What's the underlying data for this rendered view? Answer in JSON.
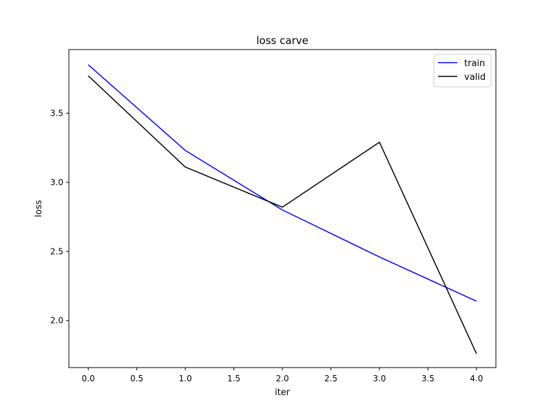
{
  "chart_data": {
    "type": "line",
    "title": "loss carve",
    "xlabel": "iter",
    "ylabel": "loss",
    "x": [
      0,
      1,
      2,
      3,
      4
    ],
    "series": [
      {
        "name": "train",
        "color": "#0000ff",
        "values": [
          3.85,
          3.23,
          2.8,
          2.46,
          2.14
        ]
      },
      {
        "name": "valid",
        "color": "#000000",
        "values": [
          3.77,
          3.11,
          2.82,
          3.29,
          1.76
        ]
      }
    ],
    "xlim": [
      -0.2,
      4.2
    ],
    "ylim": [
      1.66,
      3.96
    ],
    "xticks": [
      0.0,
      0.5,
      1.0,
      1.5,
      2.0,
      2.5,
      3.0,
      3.5,
      4.0
    ],
    "xtick_labels": [
      "0.0",
      "0.5",
      "1.0",
      "1.5",
      "2.0",
      "2.5",
      "3.0",
      "3.5",
      "4.0"
    ],
    "yticks": [
      2.0,
      2.5,
      3.0,
      3.5
    ],
    "ytick_labels": [
      "2.0",
      "2.5",
      "3.0",
      "3.5"
    ],
    "grid": false,
    "legend_position": "top-right"
  }
}
